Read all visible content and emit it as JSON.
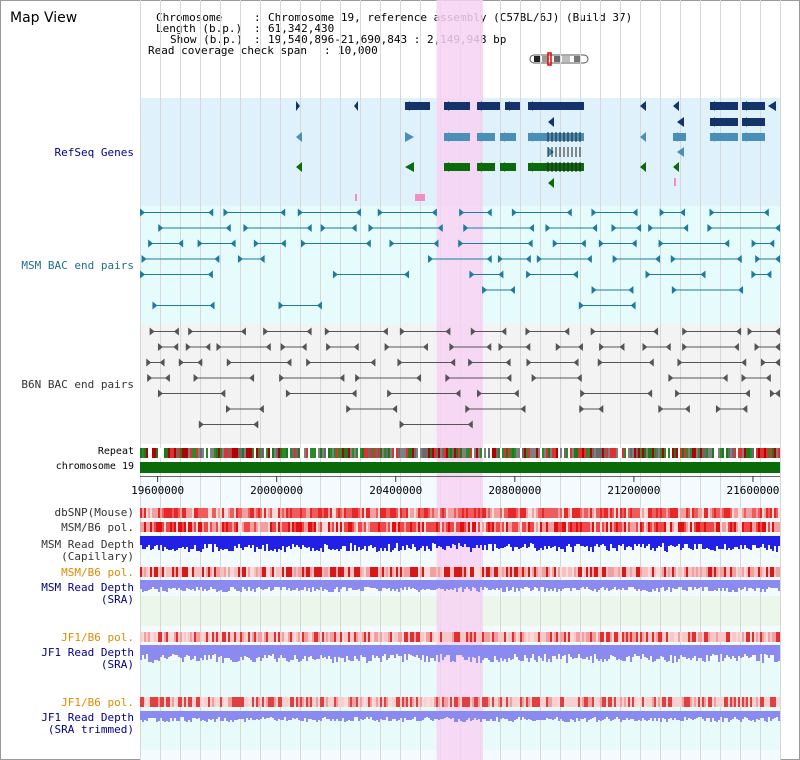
{
  "title": "Map View",
  "info": {
    "chromosome_key": "Chromosome",
    "chromosome_val": "Chromosome 19, reference assembly (C57BL/6J) (Build 37)",
    "length_key": "Length (b.p.)",
    "length_val": "61,342,430",
    "show_key": "Show (b.p.)",
    "show_val": "19,540,896-21,690,843 : 2,149,948 bp",
    "coverage_key": "Read coverage check span",
    "coverage_val": "10,000"
  },
  "track_labels": {
    "refseq": "RefSeq Genes",
    "msm_bac": "MSM BAC end pairs",
    "b6n_bac": "B6N BAC end pairs",
    "repeat": "Repeat",
    "chrom": "chromosome 19",
    "dbsnp": "dbSNP(Mouse)",
    "msm_b6_pol": "MSM/B6 pol.",
    "msm_depth_cap_1": "MSM Read Depth",
    "msm_depth_cap_2": "(Capillary)",
    "msm_b6_pol2": "MSM/B6 pol.",
    "msm_depth_sra_1": "MSM Read Depth",
    "msm_depth_sra_2": "(SRA)",
    "jf1_b6_pol": "JF1/B6 pol.",
    "jf1_depth_sra_1": "JF1 Read Depth",
    "jf1_depth_sra_2": "(SRA)",
    "jf1_b6_pol2": "JF1/B6 pol.",
    "jf1_depth_trim_1": "JF1 Read Depth",
    "jf1_depth_trim_2": "(SRA trimmed)"
  },
  "axis": {
    "start_bp": 19540896,
    "end_bp": 21690843,
    "ticks": [
      19600000,
      20000000,
      20400000,
      20800000,
      21200000,
      21600000
    ],
    "tick_labels": [
      "19600000",
      "20000000",
      "20400000",
      "20800000",
      "21200000",
      "21600000"
    ]
  },
  "highlight": {
    "start_bp": 20537000,
    "end_bp": 20693000
  },
  "colors": {
    "refseq_bg": "#dff2fb",
    "msm_bac_bg": "#e6fcfc",
    "b6n_bac_bg": "#f3f3f3",
    "highlight": "#f7d2f3",
    "chromosome": "#0a6b0a",
    "gene_dark": "#14336b",
    "gene_mid": "#4a8fb8",
    "gene_green": "#0b6b0b",
    "bac_msm": "#1f7aa0",
    "bac_b6n": "#555555",
    "label_blue": "#00008b",
    "label_teal": "#1f6e8c",
    "label_orange": "#e08a00",
    "label_gray": "#333333",
    "depth_dark": "#2020e6",
    "depth_light": "#8a8af0"
  },
  "icons": {
    "chrom_ideogram": "chromosome-ideogram-icon",
    "gene_arrow": "gene-direction-arrow-icon"
  }
}
